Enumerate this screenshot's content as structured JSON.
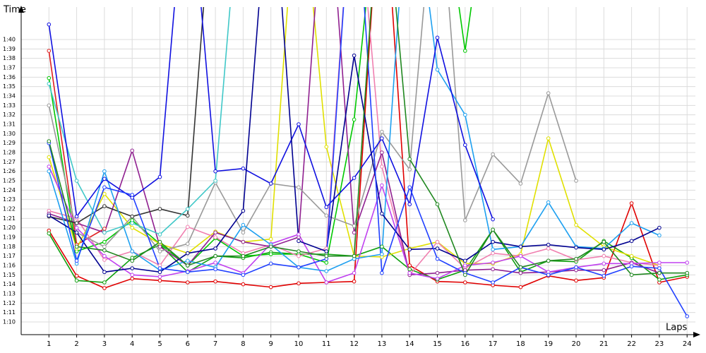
{
  "chart_data": {
    "type": "line",
    "ylabel": "Time",
    "xlabel": "Laps",
    "x": [
      1,
      2,
      3,
      4,
      5,
      6,
      7,
      8,
      9,
      10,
      11,
      12,
      13,
      14,
      15,
      16,
      17,
      18,
      19,
      20,
      21,
      22,
      23,
      24
    ],
    "xlim": [
      0,
      24.3
    ],
    "xticks": [
      1,
      2,
      3,
      4,
      5,
      6,
      7,
      8,
      9,
      10,
      11,
      12,
      13,
      14,
      15,
      16,
      17,
      18,
      19,
      20,
      21,
      22,
      23,
      24
    ],
    "ylim": [
      68.65,
      103.45
    ],
    "yticks": [
      {
        "value": 70,
        "label": "1:10"
      },
      {
        "value": 71,
        "label": "1:11"
      },
      {
        "value": 72,
        "label": "1:12"
      },
      {
        "value": 73,
        "label": "1:13"
      },
      {
        "value": 74,
        "label": "1:14"
      },
      {
        "value": 75,
        "label": "1:15"
      },
      {
        "value": 76,
        "label": "1:16"
      },
      {
        "value": 77,
        "label": "1:17"
      },
      {
        "value": 78,
        "label": "1:18"
      },
      {
        "value": 79,
        "label": "1:19"
      },
      {
        "value": 80,
        "label": "1:20"
      },
      {
        "value": 81,
        "label": "1:21"
      },
      {
        "value": 82,
        "label": "1:22"
      },
      {
        "value": 83,
        "label": "1:23"
      },
      {
        "value": 84,
        "label": "1:24"
      },
      {
        "value": 85,
        "label": "1:25"
      },
      {
        "value": 86,
        "label": "1:26"
      },
      {
        "value": 87,
        "label": "1:27"
      },
      {
        "value": 88,
        "label": "1:28"
      },
      {
        "value": 89,
        "label": "1:29"
      },
      {
        "value": 90,
        "label": "1:30"
      },
      {
        "value": 91,
        "label": "1:31"
      },
      {
        "value": 92,
        "label": "1:32"
      },
      {
        "value": 93,
        "label": "1:33"
      },
      {
        "value": 94,
        "label": "1:34"
      },
      {
        "value": 95,
        "label": "1:35"
      },
      {
        "value": 96,
        "label": "1:36"
      },
      {
        "value": 97,
        "label": "1:37"
      },
      {
        "value": 98,
        "label": "1:38"
      },
      {
        "value": 99,
        "label": "1:39"
      },
      {
        "value": 100,
        "label": "1:40"
      }
    ],
    "grid": true,
    "series": [
      {
        "color": "#e00000",
        "values": [
          79.7,
          74.9,
          73.6,
          74.6,
          74.4,
          74.2,
          74.3,
          74.0,
          73.7,
          74.1,
          74.2,
          74.3,
          120,
          76.0,
          74.3,
          74.2,
          73.9,
          73.7,
          74.9,
          74.4,
          74.7,
          82.6,
          74.2,
          74.8
        ]
      },
      {
        "color": "#e02020",
        "values": [
          98.8,
          78.2,
          79.9,
          null,
          null,
          null,
          null,
          null,
          null,
          null,
          null,
          null,
          null,
          null,
          null,
          null,
          null,
          null,
          null,
          null,
          null,
          null,
          null,
          null
        ]
      },
      {
        "color": "#10a010",
        "values": [
          79.4,
          74.4,
          74.2,
          76.8,
          78.2,
          75.3,
          77.0,
          76.8,
          77.4,
          77.2,
          77.2,
          77.0,
          78.0,
          75.6,
          74.5,
          75.5,
          79.8,
          75.3,
          76.5,
          76.4,
          78.6,
          76.8,
          74.5,
          75.0
        ]
      },
      {
        "color": "#00c800",
        "values": [
          95.9,
          77.5,
          78.5,
          80.8,
          78.3,
          76.0,
          78.9,
          77.0,
          77.2,
          77.2,
          76.3,
          91.5,
          120,
          null,
          120,
          98.8,
          120,
          null,
          null,
          null,
          null,
          null,
          null,
          null
        ]
      },
      {
        "color": "#e0e000",
        "values": [
          87.5,
          77.8,
          83.6,
          80.0,
          78.3,
          77.3,
          79.6,
          78.5,
          78.8,
          120,
          88.6,
          77.0,
          76.9,
          77.8,
          78.5,
          76.2,
          76.2,
          77.2,
          89.5,
          80.3,
          78.0,
          77.0,
          76.0,
          null
        ]
      },
      {
        "color": "#f080b0",
        "values": [
          81.8,
          81.0,
          76.6,
          77.5,
          76.0,
          80.1,
          79.0,
          77.3,
          78.2,
          77.0,
          77.8,
          120,
          86.5,
          75.0,
          78.5,
          75.7,
          77.3,
          77.0,
          77.8,
          76.6,
          77.0,
          76.3,
          76.0,
          null
        ]
      },
      {
        "color": "#902090",
        "values": [
          81.5,
          80.5,
          79.5,
          88.2,
          78.0,
          76.0,
          79.5,
          78.5,
          78.0,
          79.0,
          120,
          79.5,
          88.0,
          75.0,
          75.2,
          75.5,
          75.6,
          75.2,
          75.3,
          75.5,
          75.5,
          76.3,
          75.2,
          null
        ]
      },
      {
        "color": "#c040f0",
        "values": [
          86.5,
          80.0,
          77.0,
          75.0,
          74.8,
          75.4,
          76.3,
          75.2,
          78.3,
          79.3,
          74.2,
          75.2,
          84.5,
          75.2,
          74.6,
          76.0,
          76.3,
          77.0,
          75.3,
          75.8,
          76.2,
          76.2,
          76.3,
          76.3
        ]
      },
      {
        "color": "#999999",
        "values": [
          93.0,
          79.5,
          78.0,
          81.2,
          77.5,
          78.3,
          84.8,
          79.5,
          84.7,
          84.3,
          81.3,
          80.2,
          90.2,
          86.2,
          120,
          80.8,
          87.8,
          84.7,
          94.3,
          85.0,
          null,
          null,
          null,
          null
        ]
      },
      {
        "color": "#333333",
        "values": [
          81.2,
          80.5,
          82.3,
          81.2,
          82.0,
          81.3,
          120,
          null,
          null,
          null,
          null,
          null,
          null,
          null,
          null,
          null,
          null,
          null,
          null,
          null,
          null,
          null,
          null,
          null
        ]
      },
      {
        "color": "#40c8c8",
        "values": [
          95.3,
          85.0,
          79.5,
          80.5,
          79.3,
          82.0,
          85.0,
          120,
          null,
          null,
          null,
          null,
          null,
          null,
          null,
          null,
          null,
          null,
          null,
          null,
          null,
          null,
          null,
          null
        ]
      },
      {
        "color": "#1ea0f0",
        "values": [
          86.0,
          76.2,
          86.0,
          77.5,
          75.5,
          76.5,
          75.8,
          80.3,
          78.2,
          75.8,
          75.4,
          76.7,
          77.2,
          120,
          96.8,
          92.0,
          77.7,
          78.0,
          82.7,
          78.0,
          77.8,
          80.5,
          79.2,
          null
        ]
      },
      {
        "color": "#1010e0",
        "values": [
          101.6,
          81.2,
          85.2,
          83.2,
          85.4,
          120,
          86.0,
          86.3,
          84.7,
          91.0,
          82.2,
          85.3,
          89.5,
          82.5,
          100.2,
          88.8,
          80.9,
          null,
          null,
          null,
          null,
          null,
          null,
          null
        ]
      },
      {
        "color": "#000090",
        "values": [
          81.3,
          79.5,
          75.3,
          75.7,
          75.3,
          77.3,
          77.8,
          81.8,
          120,
          78.6,
          77.5,
          98.3,
          81.5,
          77.7,
          77.8,
          76.5,
          78.5,
          78.0,
          78.2,
          77.9,
          77.7,
          78.6,
          80.0,
          null
        ]
      },
      {
        "color": "#2040ff",
        "values": [
          89.0,
          76.5,
          84.3,
          83.5,
          75.7,
          75.3,
          75.6,
          75.0,
          76.2,
          75.8,
          76.7,
          120,
          75.2,
          84.3,
          76.7,
          75.2,
          74.2,
          75.8,
          75.0,
          75.8,
          74.9,
          75.9,
          75.7,
          70.6
        ]
      },
      {
        "color": "#208820",
        "values": [
          89.2,
          78.0,
          77.6,
          76.5,
          78.5,
          76.0,
          77.0,
          77.0,
          78.0,
          77.5,
          77.0,
          77.0,
          120,
          87.3,
          82.5,
          75.0,
          79.8,
          75.8,
          76.5,
          76.7,
          78.5,
          75.0,
          75.2,
          75.2
        ]
      }
    ]
  }
}
